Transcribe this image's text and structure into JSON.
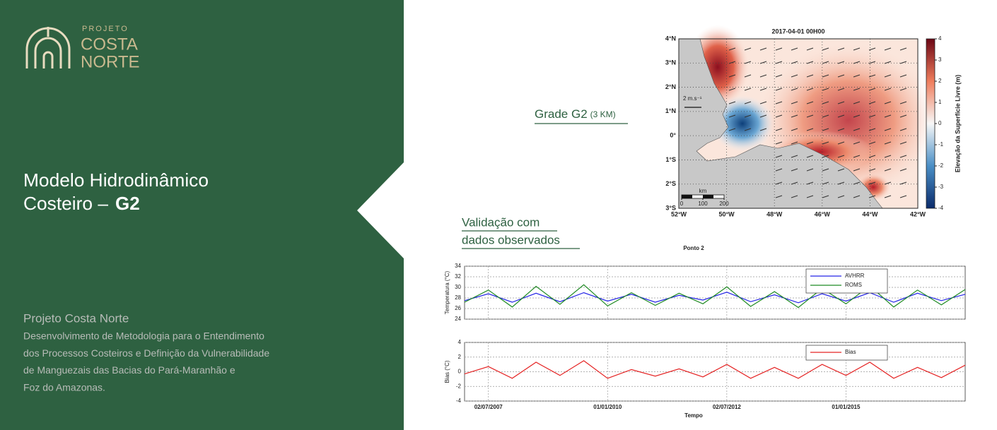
{
  "slide": {
    "logo": {
      "line1": "PROJETO",
      "line2": "COSTA",
      "line3": "NORTE"
    },
    "title": {
      "line1": "Modelo Hidrodinâmico",
      "line2": "Costeiro –",
      "emphasis": "G2"
    },
    "project": {
      "name": "Projeto Costa Norte",
      "description": [
        "Desenvolvimento de Metodologia para o Entendimento",
        "dos Processos Costeiros e Definição da Vulnerabilidade",
        "de Manguezais das Bacias do Pará-Maranhão e",
        "Foz do Amazonas."
      ]
    },
    "grid_label": {
      "text": "Grade G2",
      "detail": "(3 KM)"
    },
    "validation_label": [
      "Validação com",
      "dados observados"
    ]
  },
  "chart_data": [
    {
      "type": "map",
      "title": "2017-04-01 00H00",
      "xlim": [
        -52,
        -42
      ],
      "xticks": [
        {
          "value": -52,
          "label": "52°W"
        },
        {
          "value": -50,
          "label": "50°W"
        },
        {
          "value": -48,
          "label": "48°W"
        },
        {
          "value": -46,
          "label": "46°W"
        },
        {
          "value": -44,
          "label": "44°W"
        },
        {
          "value": -42,
          "label": "42°W"
        }
      ],
      "ylim": [
        -3,
        4
      ],
      "yticks": [
        {
          "value": 4,
          "label": "4°N"
        },
        {
          "value": 3,
          "label": "3°N"
        },
        {
          "value": 2,
          "label": "2°N"
        },
        {
          "value": 1,
          "label": "1°N"
        },
        {
          "value": 0,
          "label": "0°"
        },
        {
          "value": -1,
          "label": "1°S"
        },
        {
          "value": -2,
          "label": "2°S"
        },
        {
          "value": -3,
          "label": "3°S"
        }
      ],
      "colorbar_label": "Elevação da Superfície Livre (m)",
      "clim": [
        -4,
        4
      ],
      "cticks": [
        -4,
        -3,
        -2,
        -1,
        0,
        1,
        2,
        3,
        4
      ],
      "vector_scale_label": "2 m.s⁻¹",
      "scale_bar": {
        "label": "km",
        "ticks": [
          0,
          100,
          200
        ]
      }
    },
    {
      "type": "line",
      "title": "Ponto 2",
      "y_label": "Temperatura (°C)",
      "x": [
        2007,
        2007.5,
        2008,
        2008.5,
        2009,
        2009.5,
        2010,
        2010.5,
        2011,
        2011.5,
        2012,
        2012.5,
        2013,
        2013.5,
        2014,
        2014.5,
        2015,
        2015.5,
        2016,
        2016.5,
        2017,
        2017.5
      ],
      "xlim": [
        2007,
        2017.5
      ],
      "xticks": [
        2007.5,
        2010,
        2012.5,
        2015
      ],
      "show_xtick_labels": false,
      "ylim": [
        24,
        34
      ],
      "yticks": [
        24,
        26,
        28,
        30,
        32,
        34
      ],
      "grid": true,
      "legend": "upper right",
      "series": [
        {
          "name": "AVHRR",
          "color": "#2424e6",
          "values": [
            27.5,
            28.8,
            27.2,
            28.9,
            27.3,
            29.0,
            27.4,
            28.7,
            27.2,
            28.5,
            27.6,
            29.1,
            27.3,
            28.6,
            27.1,
            28.8,
            27.4,
            29.0,
            27.2,
            28.9,
            27.5,
            28.7
          ]
        },
        {
          "name": "ROMS",
          "color": "#1f8a24",
          "values": [
            27.2,
            29.5,
            26.3,
            30.2,
            26.8,
            30.5,
            26.5,
            29.0,
            26.6,
            28.9,
            26.9,
            30.1,
            26.4,
            29.2,
            26.2,
            29.8,
            26.9,
            30.3,
            26.3,
            29.5,
            26.7,
            29.6
          ]
        }
      ]
    },
    {
      "type": "line",
      "y_label": "Bias (°C)",
      "x_label": "Tempo",
      "x": [
        2007,
        2007.5,
        2008,
        2008.5,
        2009,
        2009.5,
        2010,
        2010.5,
        2011,
        2011.5,
        2012,
        2012.5,
        2013,
        2013.5,
        2014,
        2014.5,
        2015,
        2015.5,
        2016,
        2016.5,
        2017,
        2017.5
      ],
      "xlim": [
        2007,
        2017.5
      ],
      "xticks": [
        {
          "value": 2007.5,
          "label": "02/07/2007"
        },
        {
          "value": 2010,
          "label": "01/01/2010"
        },
        {
          "value": 2012.5,
          "label": "02/07/2012"
        },
        {
          "value": 2015,
          "label": "01/01/2015"
        }
      ],
      "show_xtick_labels": true,
      "ylim": [
        -4,
        4
      ],
      "yticks": [
        -4,
        -2,
        0,
        2,
        4
      ],
      "grid": true,
      "legend": "upper right",
      "series": [
        {
          "name": "Bias",
          "color": "#e52424",
          "values": [
            -0.3,
            0.7,
            -0.9,
            1.3,
            -0.5,
            1.5,
            -0.9,
            0.3,
            -0.6,
            0.4,
            -0.7,
            1.0,
            -0.9,
            0.6,
            -0.9,
            1.0,
            -0.5,
            1.3,
            -0.9,
            0.6,
            -0.8,
            0.9
          ]
        }
      ]
    }
  ]
}
